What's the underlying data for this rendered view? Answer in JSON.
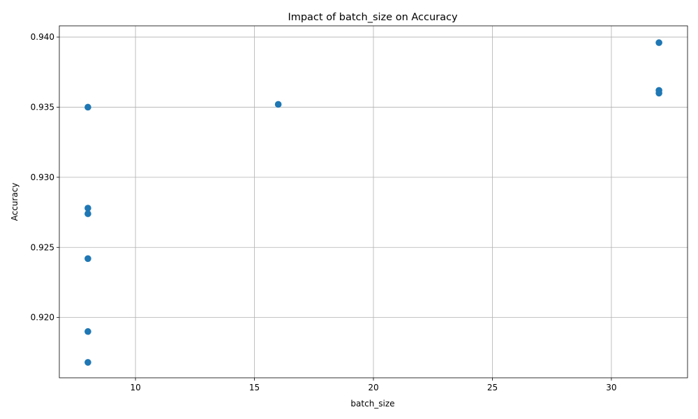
{
  "chart_data": {
    "type": "scatter",
    "title": "Impact of batch_size on Accuracy",
    "xlabel": "batch_size",
    "ylabel": "Accuracy",
    "xlim": [
      6.8,
      33.2
    ],
    "ylim": [
      0.9157,
      0.9408
    ],
    "xticks": [
      10,
      15,
      20,
      25,
      30
    ],
    "xtick_labels": [
      "10",
      "15",
      "20",
      "25",
      "30"
    ],
    "yticks": [
      0.92,
      0.925,
      0.93,
      0.935,
      0.94
    ],
    "ytick_labels": [
      "0.920",
      "0.925",
      "0.930",
      "0.935",
      "0.940"
    ],
    "grid": true,
    "marker_color": "#1f77b4",
    "points": [
      {
        "x": 8,
        "y": 0.935
      },
      {
        "x": 8,
        "y": 0.9278
      },
      {
        "x": 8,
        "y": 0.9274
      },
      {
        "x": 8,
        "y": 0.9242
      },
      {
        "x": 8,
        "y": 0.919
      },
      {
        "x": 8,
        "y": 0.9168
      },
      {
        "x": 16,
        "y": 0.9352
      },
      {
        "x": 32,
        "y": 0.9396
      },
      {
        "x": 32,
        "y": 0.9362
      },
      {
        "x": 32,
        "y": 0.936
      }
    ]
  }
}
